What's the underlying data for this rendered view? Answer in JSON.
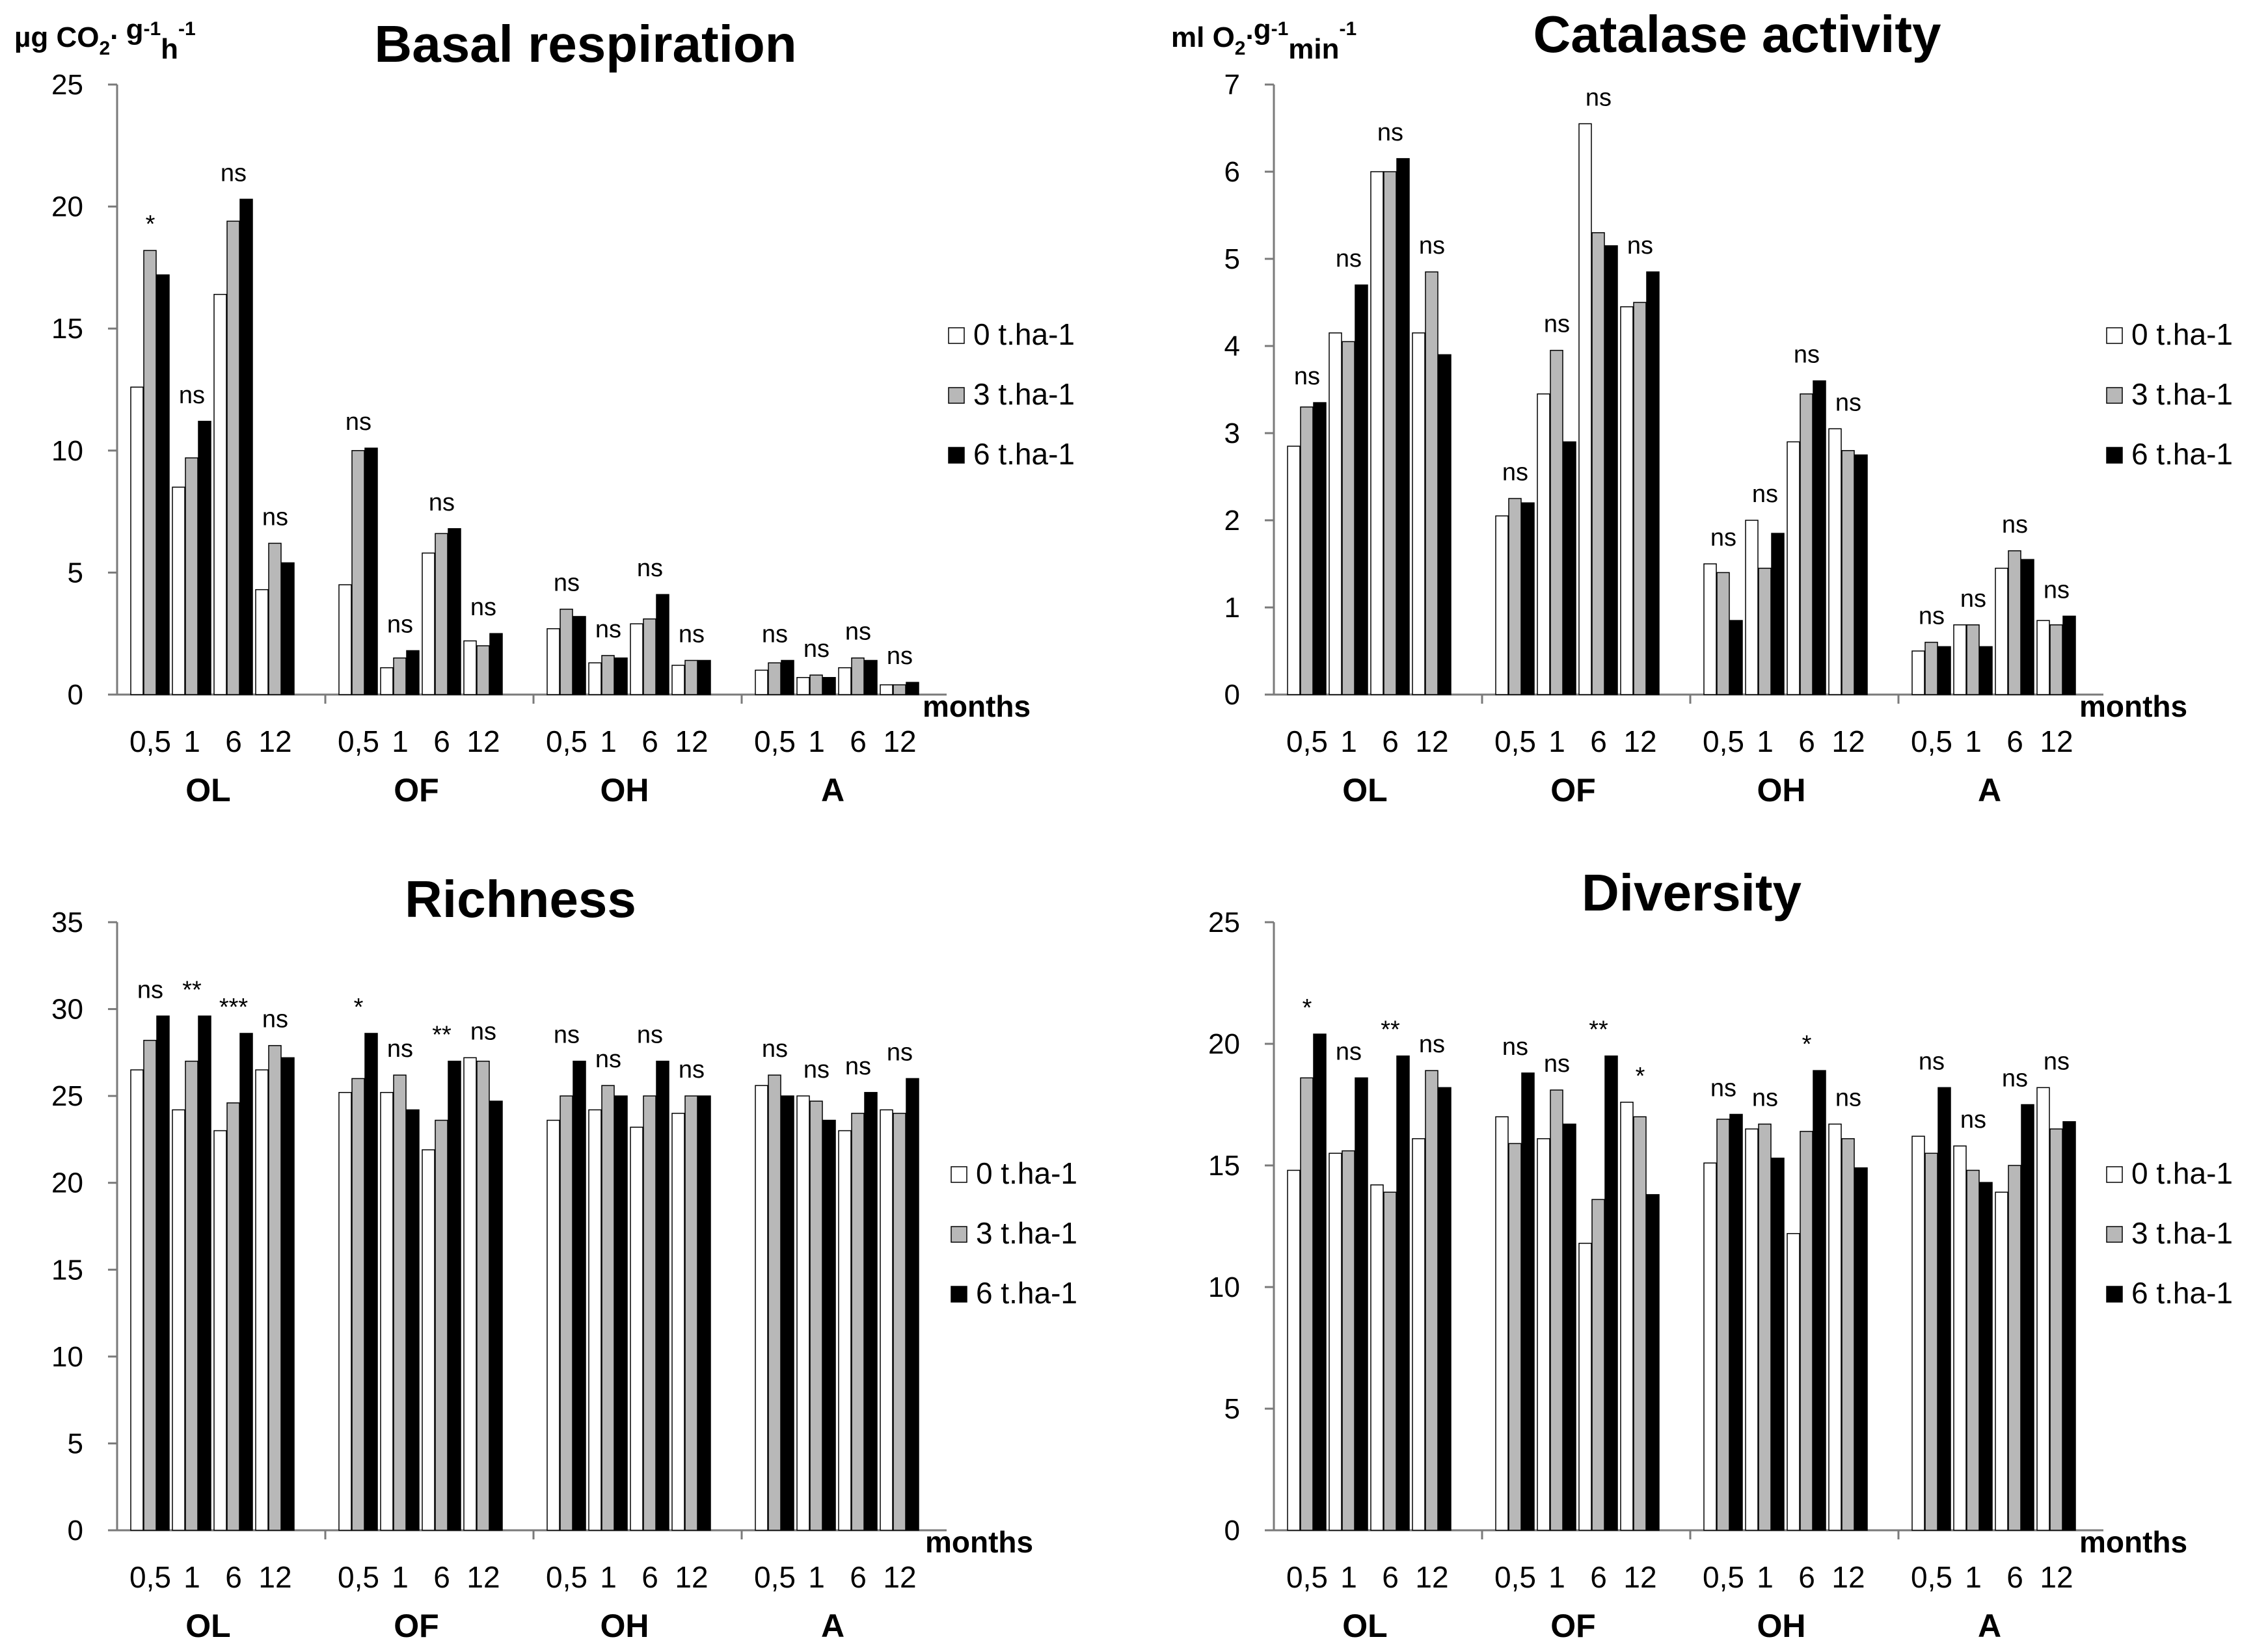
{
  "legend": [
    "0 t.ha-1",
    "3 t.ha-1",
    "6 t.ha-1"
  ],
  "colors": {
    "s0": "#ffffff",
    "s1": "#b8b8b8",
    "s2": "#000000",
    "axis": "#7a7a7a"
  },
  "chart_data": [
    {
      "type": "bar",
      "title": "Basal respiration",
      "ylabel": "µg CO2.  g-1h-1",
      "ylabel_parts": [
        "µg CO",
        "2",
        ".  g",
        "-1",
        "h",
        "-1"
      ],
      "xlabel": "months",
      "ylim": [
        0,
        25
      ],
      "yticks": [
        "0",
        "5",
        "10",
        "15",
        "20",
        "25"
      ],
      "groups": [
        "OL",
        "OF",
        "OH",
        "A"
      ],
      "categories": [
        "0,5",
        "1",
        "6",
        "12"
      ],
      "series": [
        {
          "name": "0 t.ha-1",
          "values": [
            [
              12.6,
              8.5,
              16.4,
              4.3
            ],
            [
              4.5,
              1.1,
              5.8,
              2.2
            ],
            [
              2.7,
              1.3,
              2.9,
              1.2
            ],
            [
              1.0,
              0.7,
              1.1,
              0.4
            ]
          ]
        },
        {
          "name": "3 t.ha-1",
          "values": [
            [
              18.2,
              9.7,
              19.4,
              6.2
            ],
            [
              10.0,
              1.5,
              6.6,
              2.0
            ],
            [
              3.5,
              1.6,
              3.1,
              1.4
            ],
            [
              1.3,
              0.8,
              1.5,
              0.4
            ]
          ]
        },
        {
          "name": "6 t.ha-1",
          "values": [
            [
              17.2,
              11.2,
              20.3,
              5.4
            ],
            [
              10.1,
              1.8,
              6.8,
              2.5
            ],
            [
              3.2,
              1.5,
              4.1,
              1.4
            ],
            [
              1.4,
              0.7,
              1.4,
              0.5
            ]
          ]
        }
      ],
      "significance": [
        [
          "*",
          "ns",
          "ns",
          "ns"
        ],
        [
          "ns",
          "ns",
          "ns",
          "ns"
        ],
        [
          "ns",
          "ns",
          "ns",
          "ns"
        ],
        [
          "ns",
          "ns",
          "ns",
          "ns"
        ]
      ]
    },
    {
      "type": "bar",
      "title": "Catalase activity",
      "ylabel": "ml O2.g-1min-1",
      "ylabel_parts": [
        "ml O",
        "2",
        ".g",
        "-1",
        "min",
        "-1"
      ],
      "xlabel": "months",
      "ylim": [
        0,
        7
      ],
      "yticks": [
        "0",
        "1",
        "2",
        "3",
        "4",
        "5",
        "6",
        "7"
      ],
      "groups": [
        "OL",
        "OF",
        "OH",
        "A"
      ],
      "categories": [
        "0,5",
        "1",
        "6",
        "12"
      ],
      "series": [
        {
          "name": "0 t.ha-1",
          "values": [
            [
              2.85,
              4.15,
              6.0,
              4.15
            ],
            [
              2.05,
              3.45,
              6.55,
              4.45
            ],
            [
              1.5,
              2.0,
              2.9,
              3.05
            ],
            [
              0.5,
              0.8,
              1.45,
              0.85
            ]
          ]
        },
        {
          "name": "3 t.ha-1",
          "values": [
            [
              3.3,
              4.05,
              6.0,
              4.85
            ],
            [
              2.25,
              3.95,
              5.3,
              4.5
            ],
            [
              1.4,
              1.45,
              3.45,
              2.8
            ],
            [
              0.6,
              0.8,
              1.65,
              0.8
            ]
          ]
        },
        {
          "name": "6 t.ha-1",
          "values": [
            [
              3.35,
              4.7,
              6.15,
              3.9
            ],
            [
              2.2,
              2.9,
              5.15,
              4.85
            ],
            [
              0.85,
              1.85,
              3.6,
              2.75
            ],
            [
              0.55,
              0.55,
              1.55,
              0.9
            ]
          ]
        }
      ],
      "significance": [
        [
          "ns",
          "ns",
          "ns",
          "ns"
        ],
        [
          "ns",
          "ns",
          "ns",
          "ns"
        ],
        [
          "ns",
          "ns",
          "ns",
          "ns"
        ],
        [
          "ns",
          "ns",
          "ns",
          "ns"
        ]
      ]
    },
    {
      "type": "bar",
      "title": "Richness",
      "ylabel": "",
      "ylabel_parts": [],
      "xlabel": "months",
      "ylim": [
        0,
        35
      ],
      "yticks": [
        "0",
        "5",
        "10",
        "15",
        "20",
        "25",
        "30",
        "35"
      ],
      "groups": [
        "OL",
        "OF",
        "OH",
        "A"
      ],
      "categories": [
        "0,5",
        "1",
        "6",
        "12"
      ],
      "series": [
        {
          "name": "0 t.ha-1",
          "values": [
            [
              26.5,
              24.2,
              23.0,
              26.5
            ],
            [
              25.2,
              25.2,
              21.9,
              27.2
            ],
            [
              23.6,
              24.2,
              23.2,
              24.0
            ],
            [
              25.6,
              25.0,
              23.0,
              24.2
            ]
          ]
        },
        {
          "name": "3 t.ha-1",
          "values": [
            [
              28.2,
              27.0,
              24.6,
              27.9
            ],
            [
              26.0,
              26.2,
              23.6,
              27.0
            ],
            [
              25.0,
              25.6,
              25.0,
              25.0
            ],
            [
              26.2,
              24.7,
              24.0,
              24.0
            ]
          ]
        },
        {
          "name": "6 t.ha-1",
          "values": [
            [
              29.6,
              29.6,
              28.6,
              27.2
            ],
            [
              28.6,
              24.2,
              27.0,
              24.7
            ],
            [
              27.0,
              25.0,
              27.0,
              25.0
            ],
            [
              25.0,
              23.6,
              25.2,
              26.0
            ]
          ]
        }
      ],
      "significance": [
        [
          "ns",
          "**",
          "***",
          "ns"
        ],
        [
          "*",
          "ns",
          "**",
          "ns"
        ],
        [
          "ns",
          "ns",
          "ns",
          "ns"
        ],
        [
          "ns",
          "ns",
          "ns",
          "ns"
        ]
      ]
    },
    {
      "type": "bar",
      "title": "Diversity",
      "ylabel": "",
      "ylabel_parts": [],
      "xlabel": "months",
      "ylim": [
        0,
        25
      ],
      "yticks": [
        "0",
        "5",
        "10",
        "15",
        "20",
        "25"
      ],
      "groups": [
        "OL",
        "OF",
        "OH",
        "A"
      ],
      "categories": [
        "0,5",
        "1",
        "6",
        "12"
      ],
      "series": [
        {
          "name": "0 t.ha-1",
          "values": [
            [
              14.8,
              15.5,
              14.2,
              16.1
            ],
            [
              17.0,
              16.1,
              11.8,
              17.6
            ],
            [
              15.1,
              16.5,
              12.2,
              16.7
            ],
            [
              16.2,
              15.8,
              13.9,
              18.2
            ]
          ]
        },
        {
          "name": "3 t.ha-1",
          "values": [
            [
              18.6,
              15.6,
              13.9,
              18.9
            ],
            [
              15.9,
              18.1,
              13.6,
              17.0
            ],
            [
              16.9,
              16.7,
              16.4,
              16.1
            ],
            [
              15.5,
              14.8,
              15.0,
              16.5
            ]
          ]
        },
        {
          "name": "6 t.ha-1",
          "values": [
            [
              20.4,
              18.6,
              19.5,
              18.2
            ],
            [
              18.8,
              16.7,
              19.5,
              13.8
            ],
            [
              17.1,
              15.3,
              18.9,
              14.9
            ],
            [
              18.2,
              14.3,
              17.5,
              16.8
            ]
          ]
        }
      ],
      "significance": [
        [
          "*",
          "ns",
          "**",
          "ns"
        ],
        [
          "ns",
          "ns",
          "**",
          "*"
        ],
        [
          "ns",
          "ns",
          "*",
          "ns"
        ],
        [
          "ns",
          "ns",
          "ns",
          "ns"
        ]
      ]
    }
  ]
}
